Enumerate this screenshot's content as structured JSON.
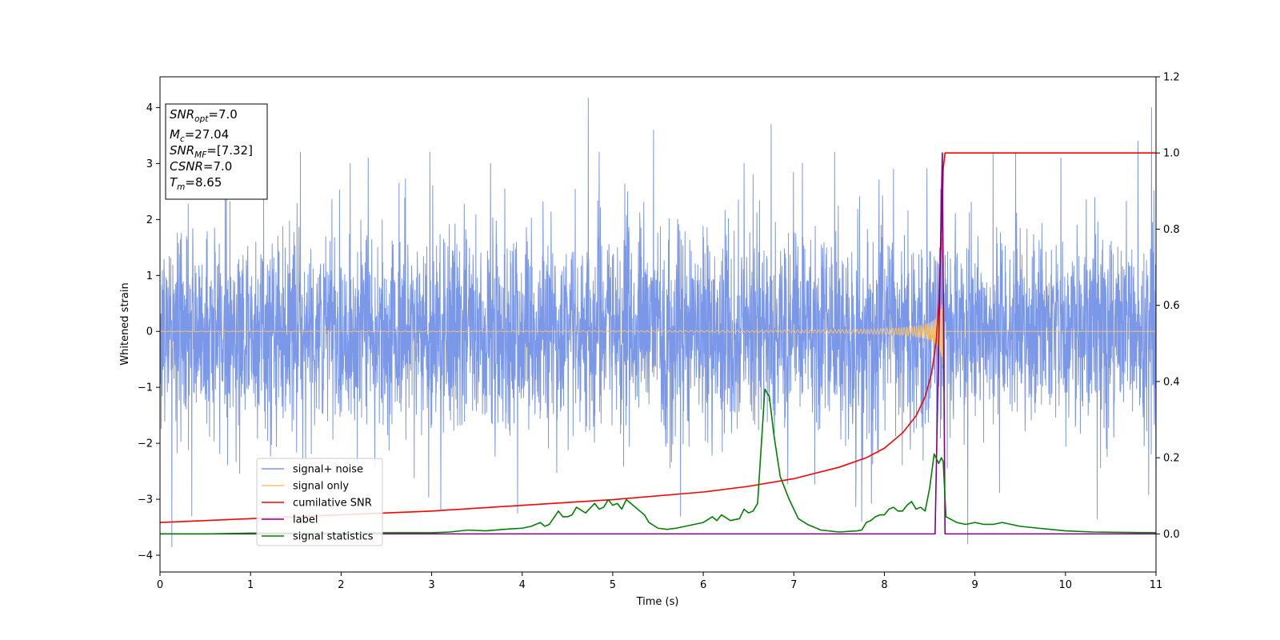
{
  "chart_data": {
    "type": "line",
    "title": "",
    "xlabel": "Time (s)",
    "ylabel": "Whitened strain",
    "y2label": "",
    "xlim": [
      0,
      11
    ],
    "ylim": [
      -4.3,
      4.55
    ],
    "y2lim": [
      -0.1,
      1.2
    ],
    "xticks": [
      0,
      1,
      2,
      3,
      4,
      5,
      6,
      7,
      8,
      9,
      10,
      11
    ],
    "xtick_labels": [
      "0",
      "1",
      "2",
      "3",
      "4",
      "5",
      "6",
      "7",
      "8",
      "9",
      "10",
      "11"
    ],
    "yticks": [
      -4,
      -3,
      -2,
      -1,
      0,
      1,
      2,
      3,
      4
    ],
    "ytick_labels": [
      "−4",
      "−3",
      "−2",
      "−1",
      "0",
      "1",
      "2",
      "3",
      "4"
    ],
    "y2ticks": [
      0.0,
      0.2,
      0.4,
      0.6,
      0.8,
      1.0,
      1.2
    ],
    "y2tick_labels": [
      "0.0",
      "0.2",
      "0.4",
      "0.6",
      "0.8",
      "1.0",
      "1.2"
    ],
    "grid": false,
    "legend_position": "lower-left",
    "info_box": {
      "lines": [
        {
          "base": "SNR",
          "sub": "opt",
          "rest": "=7.0"
        },
        {
          "base": "M",
          "sub": "c",
          "rest": "=27.04"
        },
        {
          "base": "SNR",
          "sub": "MF",
          "rest": "=[7.32]"
        },
        {
          "base": "CSNR",
          "sub": "",
          "rest": "=7.0"
        },
        {
          "base": "T",
          "sub": "m",
          "rest": "=8.65"
        }
      ]
    },
    "merger_time": 8.65,
    "series": [
      {
        "name": "signal+ noise",
        "axis": "left",
        "color": "#7b97e8",
        "kind": "noise",
        "noise_sigma": 0.9,
        "spikes": [
          [
            0.13,
            -3.85
          ],
          [
            0.35,
            -3.3
          ],
          [
            0.72,
            3.2
          ],
          [
            1.55,
            3.2
          ],
          [
            2.1,
            3.0
          ],
          [
            2.3,
            3.1
          ],
          [
            2.98,
            3.2
          ],
          [
            3.1,
            -3.2
          ],
          [
            3.65,
            3.0
          ],
          [
            3.95,
            -3.25
          ],
          [
            4.73,
            4.17
          ],
          [
            4.85,
            3.2
          ],
          [
            5.45,
            3.6
          ],
          [
            5.75,
            -3.3
          ],
          [
            6.45,
            3.0
          ],
          [
            6.55,
            2.8
          ],
          [
            6.75,
            3.7
          ],
          [
            7.45,
            3.2
          ],
          [
            7.75,
            -3.4
          ],
          [
            8.1,
            2.9
          ],
          [
            8.92,
            -3.8
          ],
          [
            9.2,
            3.2
          ],
          [
            9.45,
            3.2
          ],
          [
            9.95,
            3.1
          ],
          [
            10.35,
            -3.35
          ],
          [
            10.8,
            3.4
          ],
          [
            10.95,
            4.0
          ]
        ]
      },
      {
        "name": "signal only",
        "axis": "left",
        "color": "#f5c270",
        "kind": "chirp",
        "max_amplitude": 0.65
      },
      {
        "name": "cumilative SNR",
        "axis": "right",
        "color": "#ff0000",
        "x": [
          0,
          1,
          2,
          3,
          4,
          5,
          6,
          6.5,
          7,
          7.5,
          7.8,
          8.0,
          8.2,
          8.35,
          8.45,
          8.52,
          8.57,
          8.6,
          8.62,
          8.64,
          8.65,
          8.67,
          11
        ],
        "y": [
          0.03,
          0.04,
          0.05,
          0.06,
          0.075,
          0.09,
          0.11,
          0.125,
          0.145,
          0.175,
          0.2,
          0.225,
          0.265,
          0.31,
          0.36,
          0.42,
          0.5,
          0.6,
          0.72,
          0.85,
          0.96,
          1.0,
          1.0
        ]
      },
      {
        "name": "label",
        "axis": "right",
        "color": "#800080",
        "x": [
          0,
          8.56,
          8.64,
          8.67,
          11
        ],
        "y": [
          0.0,
          0.0,
          1.0,
          0.0,
          0.0
        ]
      },
      {
        "name": "signal statistics",
        "axis": "right",
        "color": "#008000",
        "x": [
          0,
          0.5,
          1.0,
          1.5,
          2.0,
          2.5,
          3.0,
          3.2,
          3.4,
          3.6,
          3.8,
          4.0,
          4.1,
          4.2,
          4.25,
          4.3,
          4.4,
          4.45,
          4.5,
          4.55,
          4.6,
          4.7,
          4.8,
          4.85,
          4.9,
          4.95,
          5.0,
          5.05,
          5.1,
          5.15,
          5.2,
          5.25,
          5.3,
          5.35,
          5.4,
          5.5,
          5.6,
          5.7,
          5.8,
          5.9,
          6.0,
          6.1,
          6.15,
          6.2,
          6.3,
          6.4,
          6.45,
          6.5,
          6.55,
          6.6,
          6.68,
          6.73,
          6.78,
          6.85,
          6.95,
          7.05,
          7.15,
          7.2,
          7.3,
          7.5,
          7.7,
          7.75,
          7.8,
          7.85,
          7.9,
          7.95,
          8.0,
          8.05,
          8.1,
          8.15,
          8.2,
          8.25,
          8.3,
          8.35,
          8.4,
          8.45,
          8.5,
          8.55,
          8.6,
          8.63,
          8.65,
          8.68,
          8.72,
          8.8,
          8.9,
          9.0,
          9.1,
          9.2,
          9.3,
          9.4,
          9.5,
          9.7,
          10.0,
          10.3,
          10.6,
          11.0
        ],
        "y": [
          0.0,
          0.0,
          0.002,
          0.002,
          0.002,
          0.003,
          0.003,
          0.005,
          0.01,
          0.008,
          0.012,
          0.015,
          0.02,
          0.03,
          0.02,
          0.025,
          0.06,
          0.045,
          0.045,
          0.05,
          0.07,
          0.055,
          0.08,
          0.065,
          0.07,
          0.09,
          0.075,
          0.08,
          0.065,
          0.09,
          0.08,
          0.07,
          0.06,
          0.05,
          0.03,
          0.015,
          0.012,
          0.015,
          0.02,
          0.025,
          0.03,
          0.045,
          0.035,
          0.05,
          0.035,
          0.04,
          0.065,
          0.055,
          0.06,
          0.08,
          0.38,
          0.36,
          0.26,
          0.15,
          0.09,
          0.04,
          0.025,
          0.02,
          0.01,
          0.005,
          0.008,
          0.01,
          0.03,
          0.035,
          0.045,
          0.05,
          0.05,
          0.065,
          0.07,
          0.06,
          0.06,
          0.075,
          0.085,
          0.065,
          0.07,
          0.06,
          0.12,
          0.21,
          0.185,
          0.2,
          0.19,
          0.045,
          0.04,
          0.03,
          0.025,
          0.03,
          0.025,
          0.025,
          0.03,
          0.025,
          0.02,
          0.015,
          0.008,
          0.005,
          0.004,
          0.003
        ]
      }
    ]
  }
}
